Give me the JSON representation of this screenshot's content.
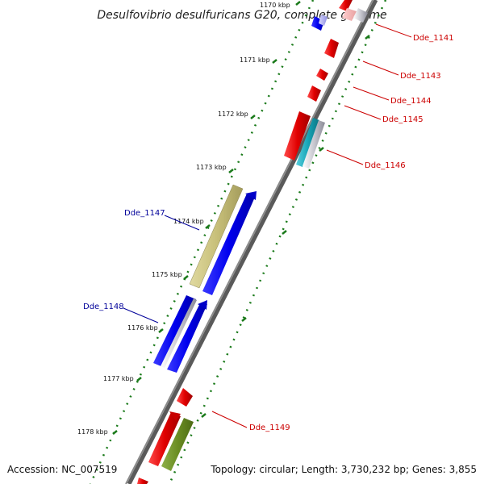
{
  "title": "Desulfovibrio desulfuricans G20, complete genome",
  "footer": {
    "accession": "Accession: NC_007519",
    "summary": "Topology: circular; Length: 3,730,232 bp; Genes: 3,855"
  },
  "ticks": [
    "1170 kbp",
    "1171 kbp",
    "1172 kbp",
    "1173 kbp",
    "1174 kbp",
    "1175 kbp",
    "1176 kbp",
    "1177 kbp",
    "1178 kbp"
  ],
  "gene_labels": [
    {
      "id": "Dde_1141",
      "color": "#cc0000"
    },
    {
      "id": "Dde_1143",
      "color": "#cc0000"
    },
    {
      "id": "Dde_1144",
      "color": "#cc0000"
    },
    {
      "id": "Dde_1145",
      "color": "#cc0000"
    },
    {
      "id": "Dde_1146",
      "color": "#cc0000"
    },
    {
      "id": "Dde_1147",
      "color": "#000099"
    },
    {
      "id": "Dde_1148",
      "color": "#000099"
    },
    {
      "id": "Dde_1149",
      "color": "#cc0000"
    }
  ],
  "colors": {
    "backbone": "#7a7a7a",
    "tick_dots": "#1a7a1a",
    "forward_cds": "#ee0000",
    "reverse_cds": "#0000ee",
    "khaki_feature": "#c8c07a",
    "olive_feature": "#6b8e23",
    "cyan_feature": "#17a6b8",
    "gene_label_forward": "#cc0000",
    "gene_label_reverse": "#000099"
  }
}
